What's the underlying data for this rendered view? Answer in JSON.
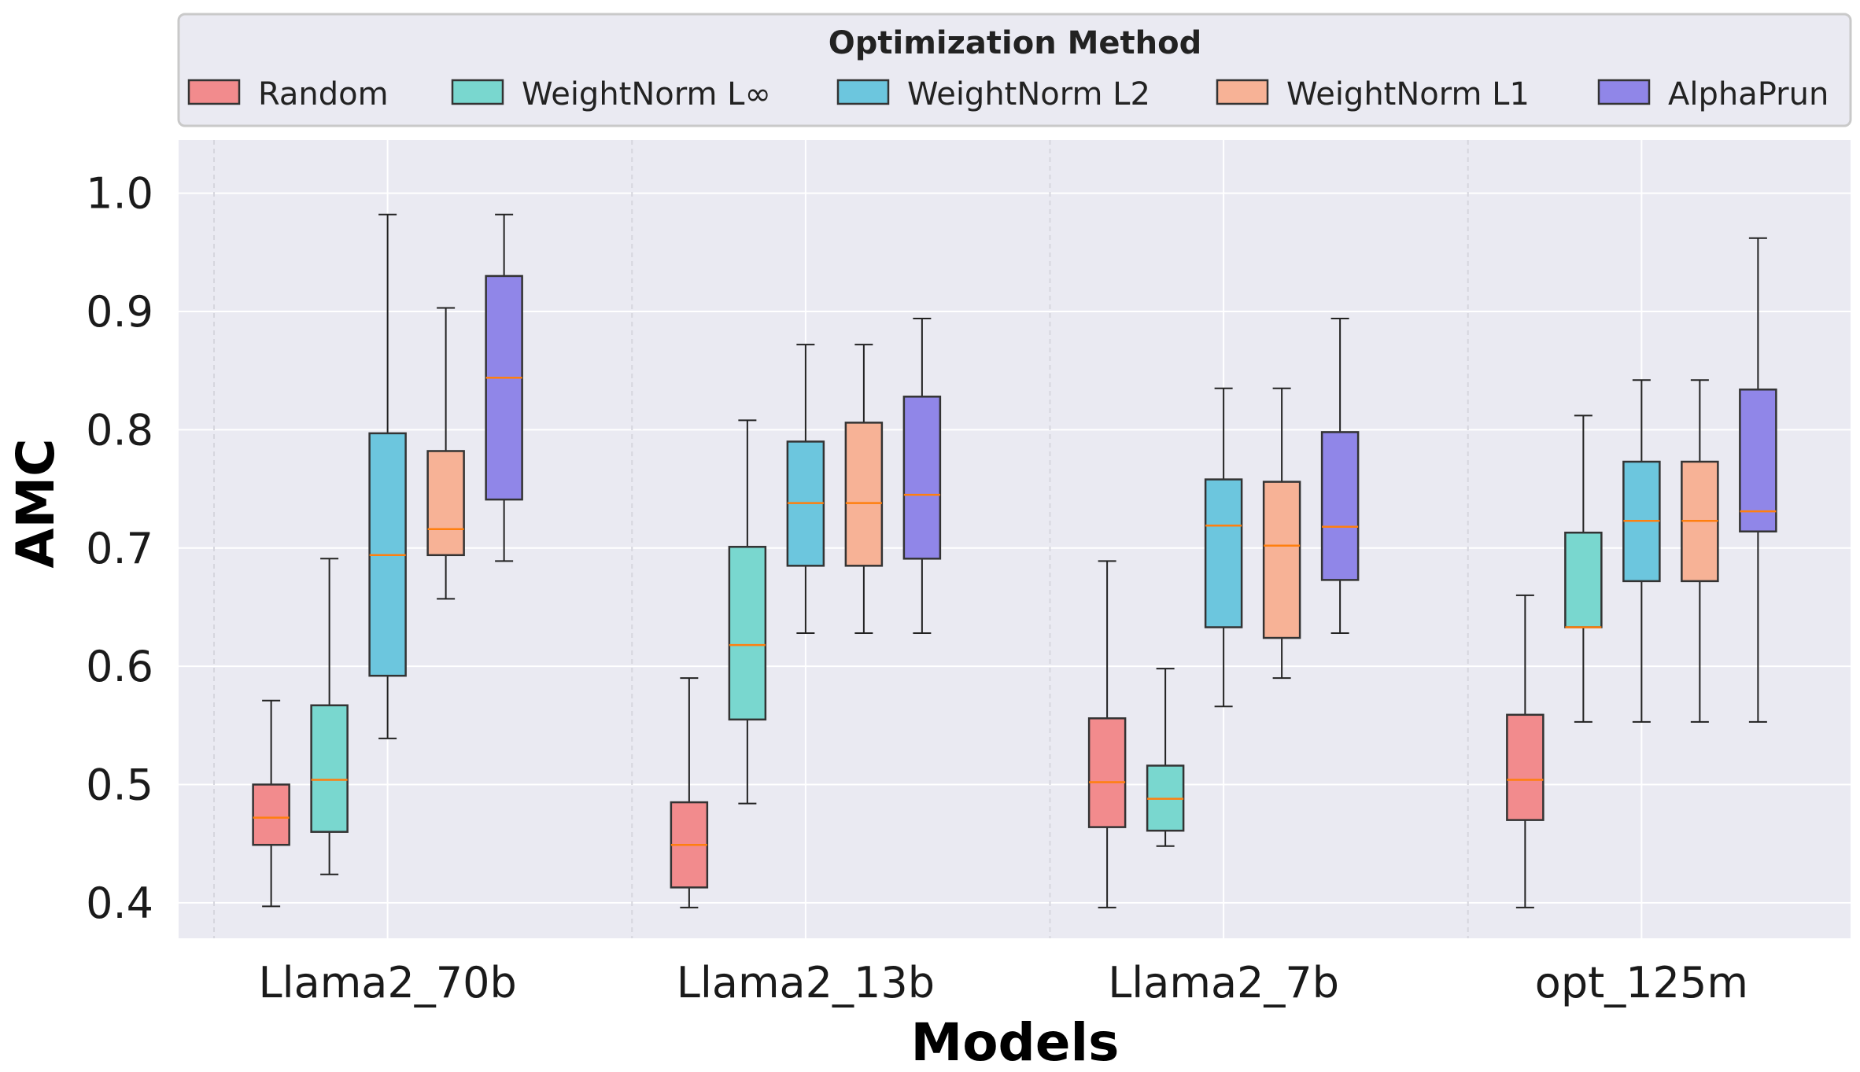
{
  "chart_data": {
    "type": "box",
    "title": "",
    "xlabel": "Models",
    "ylabel": "AMC",
    "ylim": [
      0.37,
      1.045
    ],
    "yticks": [
      0.4,
      0.5,
      0.6,
      0.7,
      0.8,
      0.9,
      1.0
    ],
    "ytick_labels": [
      "0.4",
      "0.5",
      "0.6",
      "0.7",
      "0.8",
      "0.9",
      "1.0"
    ],
    "grid": true,
    "legend": {
      "title": "Optimization Method",
      "position": "top"
    },
    "categories": [
      "Llama2_70b",
      "Llama2_13b",
      "Llama2_7b",
      "opt_125m"
    ],
    "series": [
      {
        "name": "Random",
        "color": "#f28b8d",
        "boxes": [
          {
            "whislo": 0.397,
            "q1": 0.449,
            "med": 0.472,
            "q3": 0.5,
            "whishi": 0.571
          },
          {
            "whislo": 0.396,
            "q1": 0.413,
            "med": 0.449,
            "q3": 0.485,
            "whishi": 0.59
          },
          {
            "whislo": 0.396,
            "q1": 0.464,
            "med": 0.502,
            "q3": 0.556,
            "whishi": 0.689
          },
          {
            "whislo": 0.396,
            "q1": 0.47,
            "med": 0.504,
            "q3": 0.559,
            "whishi": 0.66
          }
        ]
      },
      {
        "name": "WeightNorm L∞",
        "color": "#79d7cf",
        "boxes": [
          {
            "whislo": 0.424,
            "q1": 0.46,
            "med": 0.504,
            "q3": 0.567,
            "whishi": 0.691
          },
          {
            "whislo": 0.484,
            "q1": 0.555,
            "med": 0.618,
            "q3": 0.701,
            "whishi": 0.808
          },
          {
            "whislo": 0.448,
            "q1": 0.461,
            "med": 0.488,
            "q3": 0.516,
            "whishi": 0.598
          },
          {
            "whislo": 0.553,
            "q1": 0.633,
            "med": 0.633,
            "q3": 0.713,
            "whishi": 0.812
          }
        ]
      },
      {
        "name": "WeightNorm L2",
        "color": "#6cc6de",
        "boxes": [
          {
            "whislo": 0.539,
            "q1": 0.592,
            "med": 0.694,
            "q3": 0.797,
            "whishi": 0.982
          },
          {
            "whislo": 0.628,
            "q1": 0.685,
            "med": 0.738,
            "q3": 0.79,
            "whishi": 0.872
          },
          {
            "whislo": 0.566,
            "q1": 0.633,
            "med": 0.719,
            "q3": 0.758,
            "whishi": 0.835
          },
          {
            "whislo": 0.553,
            "q1": 0.672,
            "med": 0.723,
            "q3": 0.773,
            "whishi": 0.842
          }
        ]
      },
      {
        "name": "WeightNorm L1",
        "color": "#f7b296",
        "boxes": [
          {
            "whislo": 0.657,
            "q1": 0.694,
            "med": 0.716,
            "q3": 0.782,
            "whishi": 0.903
          },
          {
            "whislo": 0.628,
            "q1": 0.685,
            "med": 0.738,
            "q3": 0.806,
            "whishi": 0.872
          },
          {
            "whislo": 0.59,
            "q1": 0.624,
            "med": 0.702,
            "q3": 0.756,
            "whishi": 0.835
          },
          {
            "whislo": 0.553,
            "q1": 0.672,
            "med": 0.723,
            "q3": 0.773,
            "whishi": 0.842
          }
        ]
      },
      {
        "name": "AlphaPrun",
        "color": "#9086e8",
        "boxes": [
          {
            "whislo": 0.689,
            "q1": 0.741,
            "med": 0.844,
            "q3": 0.93,
            "whishi": 0.982
          },
          {
            "whislo": 0.628,
            "q1": 0.691,
            "med": 0.745,
            "q3": 0.828,
            "whishi": 0.894
          },
          {
            "whislo": 0.628,
            "q1": 0.673,
            "med": 0.718,
            "q3": 0.798,
            "whishi": 0.894
          },
          {
            "whislo": 0.553,
            "q1": 0.714,
            "med": 0.731,
            "q3": 0.834,
            "whishi": 0.962
          }
        ]
      }
    ]
  }
}
